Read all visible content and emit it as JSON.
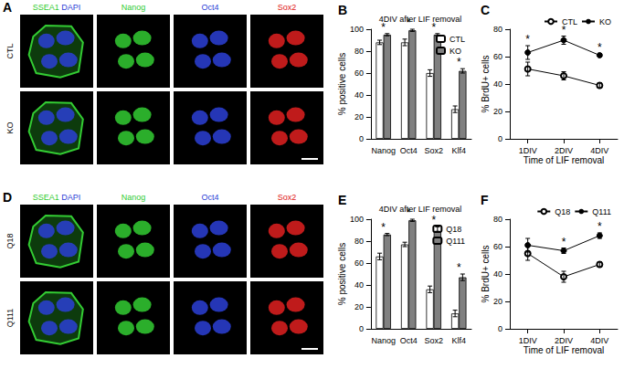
{
  "image_panels": [
    {
      "panel": "A",
      "rows": [
        "CTL",
        "KO"
      ],
      "columns": [
        {
          "labels": [
            {
              "text": "SSEA1",
              "color": "#33cc33"
            },
            {
              "text": "DAPI",
              "color": "#2b3fd6"
            }
          ]
        },
        {
          "labels": [
            {
              "text": "Nanog",
              "color": "#33cc33"
            }
          ]
        },
        {
          "labels": [
            {
              "text": "Oct4",
              "color": "#2b3fd6"
            }
          ]
        },
        {
          "labels": [
            {
              "text": "Sox2",
              "color": "#e02020"
            }
          ]
        }
      ]
    },
    {
      "panel": "D",
      "rows": [
        "Q18",
        "Q111"
      ],
      "columns": [
        {
          "labels": [
            {
              "text": "SSEA1",
              "color": "#33cc33"
            },
            {
              "text": "DAPI",
              "color": "#2b3fd6"
            }
          ]
        },
        {
          "labels": [
            {
              "text": "Nanog",
              "color": "#33cc33"
            }
          ]
        },
        {
          "labels": [
            {
              "text": "Oct4",
              "color": "#2b3fd6"
            }
          ]
        },
        {
          "labels": [
            {
              "text": "Sox2",
              "color": "#e02020"
            }
          ]
        }
      ]
    }
  ],
  "chart_data": [
    {
      "panel": "B",
      "type": "bar",
      "title": "4DIV after LIF removal",
      "categories": [
        "Nanog",
        "Oct4",
        "Sox2",
        "Klf4"
      ],
      "series": [
        {
          "name": "CTL",
          "color": "#ffffff",
          "values": [
            88,
            88,
            60,
            27
          ],
          "errors": [
            2,
            3,
            3,
            3
          ]
        },
        {
          "name": "KO",
          "color": "#808080",
          "values": [
            95,
            99,
            95,
            62
          ],
          "errors": [
            1,
            1,
            1,
            2
          ]
        }
      ],
      "significance": [
        "*",
        "*",
        "*",
        "*"
      ],
      "ylabel": "% positive cells",
      "ylim": [
        0,
        100
      ],
      "yticks": [
        0,
        20,
        40,
        60,
        80,
        100
      ],
      "legend": "top-right",
      "grid": false
    },
    {
      "panel": "C",
      "type": "line",
      "categories": [
        "1DIV",
        "2DIV",
        "4DIV"
      ],
      "series": [
        {
          "name": "CTL",
          "color": "#000000",
          "marker": "open",
          "values": [
            51,
            46,
            39
          ],
          "errors": [
            5,
            3,
            2
          ]
        },
        {
          "name": "KO",
          "color": "#000000",
          "marker": "filled",
          "values": [
            63,
            72,
            61
          ],
          "errors": [
            5,
            3,
            1
          ]
        }
      ],
      "significance": [
        "*",
        "*",
        "*"
      ],
      "xlabel": "Time of LIF removal",
      "ylabel": "% BrdU+ cells",
      "ylim": [
        0,
        80
      ],
      "yticks": [
        0,
        20,
        40,
        60,
        80
      ],
      "legend": "top-right",
      "grid": false
    },
    {
      "panel": "E",
      "type": "bar",
      "title": "4DIV after LIF removal",
      "categories": [
        "Nanog",
        "Oct4",
        "Sox2",
        "Klf4"
      ],
      "series": [
        {
          "name": "Q18",
          "color": "#ffffff",
          "values": [
            66,
            77,
            36,
            14
          ],
          "errors": [
            3,
            2,
            3,
            3
          ]
        },
        {
          "name": "Q111",
          "color": "#808080",
          "values": [
            86,
            99,
            91,
            47
          ],
          "errors": [
            1,
            1,
            2,
            3
          ]
        }
      ],
      "significance": [
        "*",
        "*",
        "*",
        "*"
      ],
      "ylabel": "% positive cells",
      "ylim": [
        0,
        100
      ],
      "yticks": [
        0,
        20,
        40,
        60,
        80,
        100
      ],
      "legend": "top-right",
      "grid": false
    },
    {
      "panel": "F",
      "type": "line",
      "categories": [
        "1DIV",
        "2DIV",
        "4DIV"
      ],
      "series": [
        {
          "name": "Q18",
          "color": "#000000",
          "marker": "open",
          "values": [
            55,
            38,
            47
          ],
          "errors": [
            5,
            4,
            2
          ]
        },
        {
          "name": "Q111",
          "color": "#000000",
          "marker": "filled",
          "values": [
            61,
            57,
            68
          ],
          "errors": [
            5,
            2,
            2
          ]
        }
      ],
      "significance": [
        null,
        "*",
        "*"
      ],
      "xlabel": "Time of LIF removal",
      "ylabel": "% BrdU+ cells",
      "ylim": [
        0,
        80
      ],
      "yticks": [
        0,
        20,
        40,
        60,
        80
      ],
      "legend": "top-right",
      "grid": false
    }
  ]
}
